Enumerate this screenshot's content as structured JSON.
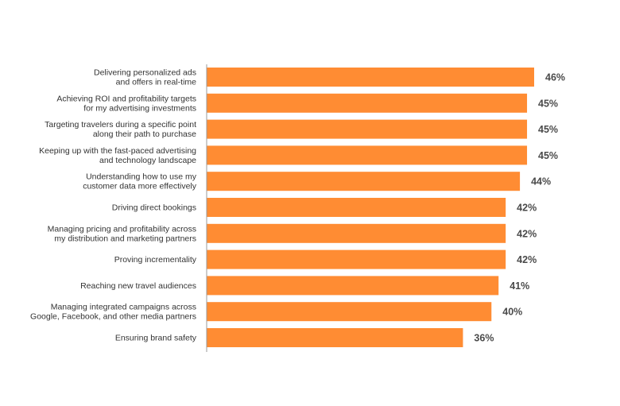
{
  "chart_data": {
    "type": "bar",
    "orientation": "horizontal",
    "categories": [
      [
        "Delivering personalized ads",
        "and offers in real-time"
      ],
      [
        "Achieving ROI and profitability targets",
        "for my advertising investments"
      ],
      [
        "Targeting travelers during a specific point",
        "along their path to purchase"
      ],
      [
        "Keeping up with the fast-paced advertising",
        "and technology landscape"
      ],
      [
        "Understanding how to use my",
        "customer data more effectively"
      ],
      [
        "Driving direct bookings"
      ],
      [
        "Managing pricing and profitability across",
        "my distribution and marketing partners"
      ],
      [
        "Proving incrementality"
      ],
      [
        "Reaching new travel audiences"
      ],
      [
        "Managing integrated campaigns across",
        "Google, Facebook, and other media partners"
      ],
      [
        "Ensuring brand safety"
      ]
    ],
    "values": [
      46,
      45,
      45,
      45,
      44,
      42,
      42,
      42,
      41,
      40,
      36
    ],
    "value_labels": [
      "46%",
      "45%",
      "45%",
      "45%",
      "44%",
      "42%",
      "42%",
      "42%",
      "41%",
      "40%",
      "36%"
    ],
    "unit": "%",
    "xlim": [
      0,
      46
    ],
    "grid": false,
    "legend": "none",
    "bar_color": "#FF8C33",
    "axis_color": "#999999"
  }
}
